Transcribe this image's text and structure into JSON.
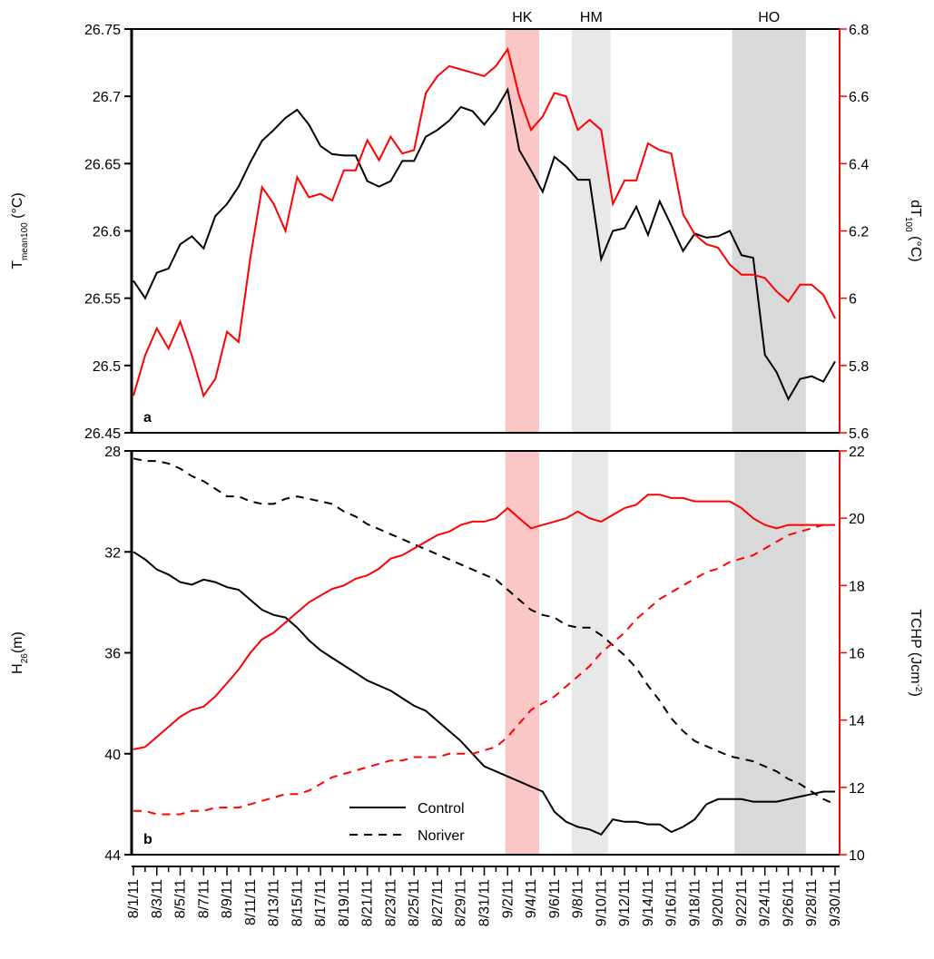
{
  "chart_data": [
    {
      "type": "line",
      "panel_label": "a",
      "ylabel": [
        "T",
        "mean100",
        " (°C)"
      ],
      "ylabel_script": "sub",
      "y2label": [
        "dT",
        "100",
        " (°C)"
      ],
      "y2label_script": "sub",
      "ylim": [
        26.45,
        26.75
      ],
      "yticks": [
        26.45,
        26.5,
        26.55,
        26.6,
        26.65,
        26.7,
        26.75
      ],
      "y2lim": [
        5.6,
        6.8
      ],
      "y2ticks": [
        5.6,
        5.8,
        6,
        6.2,
        6.4,
        6.6,
        6.8
      ],
      "spans": [
        {
          "label": "HK",
          "start": 31.8,
          "end": 34.7,
          "color": "#fbc6c6"
        },
        {
          "label": "HM",
          "start": 37.5,
          "end": 40.8,
          "color": "#e8e8e8"
        },
        {
          "label": "HO",
          "start": 51.2,
          "end": 57.5,
          "color": "#d9d9d9"
        }
      ],
      "series": [
        {
          "color": "#000000",
          "dash": false,
          "values": [
            26.563,
            26.55,
            26.569,
            26.572,
            26.59,
            26.596,
            26.587,
            26.611,
            26.62,
            26.633,
            26.651,
            26.667,
            26.675,
            26.684,
            26.69,
            26.679,
            26.663,
            26.657,
            26.656,
            26.656,
            26.637,
            26.633,
            26.637,
            26.652,
            26.652,
            26.67,
            26.675,
            26.682,
            26.692,
            26.689,
            26.679,
            26.69,
            26.705,
            26.66,
            26.645,
            26.629,
            26.655,
            26.648,
            26.638,
            26.638,
            26.579,
            26.6,
            26.602,
            26.618,
            26.597,
            26.622,
            26.604,
            26.585,
            26.598,
            26.595,
            26.596,
            26.6,
            26.582,
            26.58,
            26.508,
            26.495,
            26.475,
            26.49,
            26.492,
            26.488,
            26.503
          ]
        },
        {
          "color": "#ff0000",
          "dash": false,
          "axis": "y2",
          "values": [
            5.71,
            5.83,
            5.91,
            5.85,
            5.93,
            5.83,
            5.71,
            5.76,
            5.9,
            5.87,
            6.12,
            6.33,
            6.28,
            6.2,
            6.36,
            6.3,
            6.31,
            6.29,
            6.38,
            6.38,
            6.47,
            6.41,
            6.48,
            6.43,
            6.44,
            6.61,
            6.66,
            6.69,
            6.68,
            6.67,
            6.66,
            6.69,
            6.74,
            6.6,
            6.5,
            6.54,
            6.61,
            6.6,
            6.5,
            6.53,
            6.5,
            6.28,
            6.35,
            6.35,
            6.46,
            6.44,
            6.43,
            6.25,
            6.19,
            6.16,
            6.15,
            6.1,
            6.07,
            6.07,
            6.06,
            6.02,
            5.99,
            6.04,
            6.04,
            6.01,
            5.94
          ]
        }
      ]
    },
    {
      "type": "line",
      "panel_label": "b",
      "categories": [
        "8/1/11",
        null,
        "8/3/11",
        null,
        "8/5/11",
        null,
        "8/7/11",
        null,
        "8/9/11",
        null,
        "8/11/11",
        null,
        "8/13/11",
        null,
        "8/15/11",
        null,
        "8/17/11",
        null,
        "8/19/11",
        null,
        "8/21/11",
        null,
        "8/23/11",
        null,
        "8/25/11",
        null,
        "8/27/11",
        null,
        "8/29/11",
        null,
        "8/31/11",
        null,
        "9/2/11",
        null,
        "9/4/11",
        null,
        "9/6/11",
        null,
        "9/8/11",
        null,
        "9/10/11",
        null,
        "9/12/11",
        null,
        "9/14/11",
        null,
        "9/16/11",
        null,
        "9/18/11",
        null,
        "9/20/11",
        null,
        "9/22/11",
        null,
        "9/24/11",
        null,
        "9/26/11",
        null,
        "9/28/11",
        null,
        "9/30/11"
      ],
      "ylabel": [
        "H",
        "26",
        "(m)"
      ],
      "ylabel_script": "sub",
      "y2label": [
        "TCHP (Jcm",
        "-2",
        ")"
      ],
      "y2label_script": "super",
      "ylim": [
        44,
        28
      ],
      "yticks": [
        28,
        32,
        36,
        40,
        44
      ],
      "y2lim": [
        10,
        22
      ],
      "y2ticks": [
        10,
        12,
        14,
        16,
        18,
        20,
        22
      ],
      "legend": "bottom-center",
      "spans": [
        {
          "start": 31.8,
          "end": 34.7,
          "color": "#fbc6c6"
        },
        {
          "start": 37.5,
          "end": 40.6,
          "color": "#e8e8e8"
        },
        {
          "start": 51.4,
          "end": 57.5,
          "color": "#d9d9d9"
        }
      ],
      "series": [
        {
          "name": "Control",
          "color": "#000000",
          "dash": false,
          "values": [
            32.0,
            32.3,
            32.7,
            32.9,
            33.2,
            33.3,
            33.1,
            33.2,
            33.4,
            33.5,
            33.9,
            34.3,
            34.5,
            34.6,
            35.0,
            35.5,
            35.9,
            36.2,
            36.5,
            36.8,
            37.1,
            37.3,
            37.5,
            37.8,
            38.1,
            38.3,
            38.7,
            39.1,
            39.5,
            40.0,
            40.5,
            40.7,
            40.9,
            41.1,
            41.3,
            41.5,
            42.3,
            42.7,
            42.9,
            43.0,
            43.2,
            42.6,
            42.7,
            42.7,
            42.8,
            42.8,
            43.1,
            42.9,
            42.6,
            42.0,
            41.8,
            41.8,
            41.8,
            41.9,
            41.9,
            41.9,
            41.8,
            41.7,
            41.6,
            41.5,
            41.5
          ]
        },
        {
          "name": "Noriver",
          "color": "#000000",
          "dash": true,
          "values": [
            28.3,
            28.4,
            28.4,
            28.5,
            28.7,
            29.0,
            29.2,
            29.5,
            29.8,
            29.8,
            30.0,
            30.1,
            30.1,
            29.9,
            29.8,
            29.9,
            30.0,
            30.1,
            30.4,
            30.6,
            30.9,
            31.1,
            31.3,
            31.5,
            31.7,
            31.9,
            32.1,
            32.3,
            32.5,
            32.7,
            32.9,
            33.1,
            33.5,
            33.9,
            34.3,
            34.5,
            34.6,
            34.9,
            35.0,
            35.0,
            35.3,
            35.7,
            36.1,
            36.6,
            37.3,
            37.9,
            38.6,
            39.1,
            39.5,
            39.7,
            39.9,
            40.1,
            40.2,
            40.3,
            40.5,
            40.7,
            41.0,
            41.2,
            41.5,
            41.8,
            42.0
          ]
        },
        {
          "color": "#ff0000",
          "dash": false,
          "axis": "y2",
          "values": [
            13.13,
            13.2,
            13.5,
            13.8,
            14.1,
            14.3,
            14.4,
            14.7,
            15.1,
            15.5,
            16.0,
            16.4,
            16.6,
            16.9,
            17.2,
            17.5,
            17.7,
            17.9,
            18.0,
            18.2,
            18.3,
            18.5,
            18.8,
            18.9,
            19.1,
            19.3,
            19.5,
            19.6,
            19.8,
            19.9,
            19.9,
            20.0,
            20.3,
            20.0,
            19.7,
            19.8,
            19.9,
            20.0,
            20.2,
            20.0,
            19.9,
            20.1,
            20.3,
            20.4,
            20.7,
            20.7,
            20.6,
            20.6,
            20.5,
            20.5,
            20.5,
            20.5,
            20.3,
            20.0,
            19.8,
            19.7,
            19.8,
            19.8,
            19.8,
            19.8,
            19.8
          ]
        },
        {
          "color": "#ff0000",
          "dash": true,
          "axis": "y2",
          "values": [
            11.3,
            11.3,
            11.2,
            11.2,
            11.2,
            11.3,
            11.3,
            11.4,
            11.4,
            11.4,
            11.5,
            11.6,
            11.7,
            11.8,
            11.8,
            11.9,
            12.1,
            12.3,
            12.4,
            12.5,
            12.6,
            12.7,
            12.8,
            12.8,
            12.9,
            12.9,
            12.9,
            13.0,
            13.0,
            13.0,
            13.1,
            13.2,
            13.5,
            13.9,
            14.3,
            14.5,
            14.7,
            15.0,
            15.3,
            15.6,
            16.0,
            16.3,
            16.6,
            17.0,
            17.3,
            17.6,
            17.8,
            18.0,
            18.2,
            18.4,
            18.5,
            18.7,
            18.8,
            18.9,
            19.1,
            19.3,
            19.5,
            19.6,
            19.7,
            19.8,
            19.8
          ]
        }
      ]
    }
  ]
}
